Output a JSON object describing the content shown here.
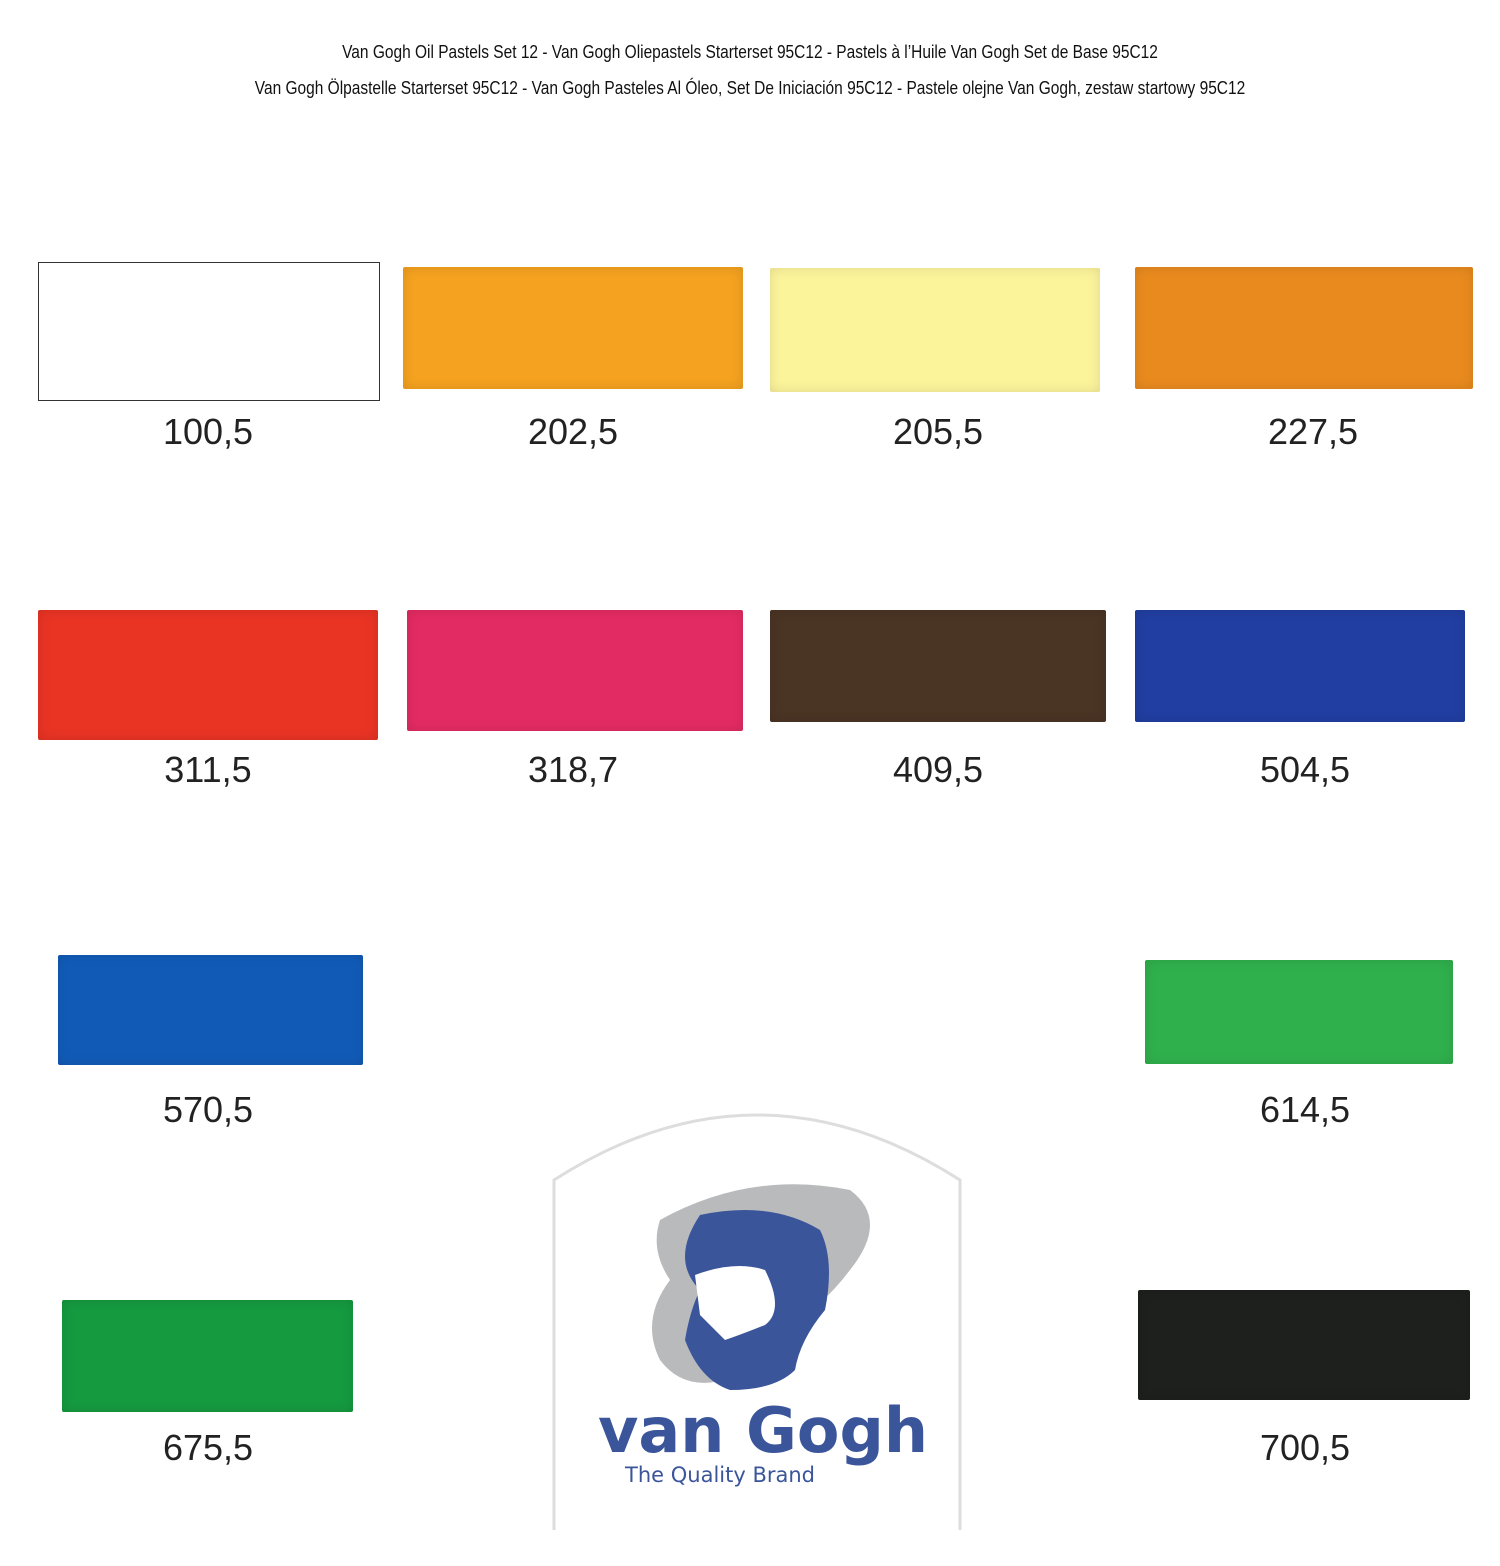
{
  "header": {
    "line1": "Van Gogh Oil Pastels Set 12 - Van Gogh Oliepastels Starterset 95C12 - Pastels à l’Huile Van Gogh Set de Base 95C12",
    "line2": "Van Gogh Ölpastelle Starterset 95C12 - Van Gogh Pasteles Al Óleo, Set De Iniciación 95C12 - Pastele olejne Van Gogh, zestaw startowy 95C12"
  },
  "swatches": [
    {
      "code": "100,5",
      "color": "#ffffff"
    },
    {
      "code": "202,5",
      "color": "#f4a21f"
    },
    {
      "code": "205,5",
      "color": "#fcf49b"
    },
    {
      "code": "227,5",
      "color": "#e98a1e"
    },
    {
      "code": "311,5",
      "color": "#e93424"
    },
    {
      "code": "318,7",
      "color": "#e32b63"
    },
    {
      "code": "409,5",
      "color": "#4a3424"
    },
    {
      "code": "504,5",
      "color": "#213fa2"
    },
    {
      "code": "570,5",
      "color": "#115bb7"
    },
    {
      "code": "614,5",
      "color": "#30b04d"
    },
    {
      "code": "675,5",
      "color": "#159a40"
    },
    {
      "code": "700,5",
      "color": "#1e201e"
    }
  ],
  "logo": {
    "brand": "van Gogh",
    "tagline": "The Quality Brand",
    "brand_color": "#3b559b",
    "shadow_color": "#b9babc"
  }
}
